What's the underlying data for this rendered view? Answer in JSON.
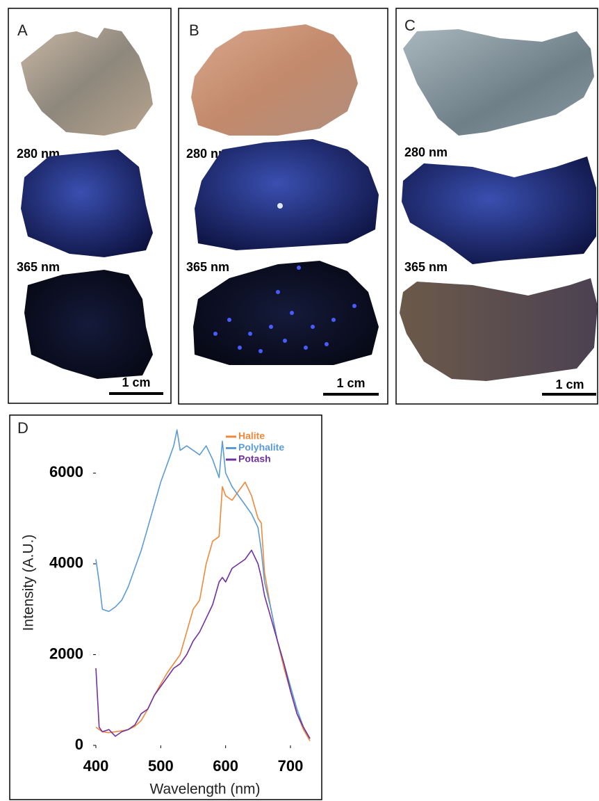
{
  "panels": [
    {
      "label": "A",
      "excitation_1": "280 nm",
      "excitation_2": "365 nm",
      "scale": "1 cm"
    },
    {
      "label": "B",
      "excitation_1": "280 nm",
      "excitation_2": "365 nm",
      "scale": "1 cm"
    },
    {
      "label": "C",
      "excitation_1": "280 nm",
      "excitation_2": "365 nm",
      "scale": "1 cm"
    }
  ],
  "chart_data": {
    "type": "line",
    "panel_label": "D",
    "x_label": "Wavelength (nm)",
    "y_label": "Intensity (A.U.)",
    "x": [
      400,
      405,
      410,
      420,
      430,
      440,
      450,
      460,
      470,
      480,
      490,
      500,
      510,
      520,
      525,
      530,
      540,
      550,
      560,
      570,
      580,
      590,
      595,
      600,
      610,
      620,
      630,
      640,
      650,
      655,
      660,
      670,
      680,
      690,
      700,
      710,
      720,
      730
    ],
    "series": [
      {
        "name": "Halite",
        "color": "#f0883a",
        "values": [
          400,
          350,
          300,
          280,
          300,
          320,
          350,
          420,
          550,
          800,
          1100,
          1350,
          1600,
          1800,
          1900,
          2000,
          2500,
          3000,
          3200,
          4000,
          4500,
          4600,
          5700,
          5500,
          5400,
          5600,
          5800,
          5500,
          5000,
          4900,
          3800,
          3000,
          2300,
          1700,
          1200,
          700,
          350,
          100
        ]
      },
      {
        "name": "Polyhalite",
        "color": "#5b9bd5",
        "values": [
          4100,
          3600,
          3000,
          2950,
          3050,
          3200,
          3500,
          3900,
          4300,
          4800,
          5300,
          5800,
          6200,
          6600,
          6950,
          6500,
          6600,
          6500,
          6400,
          6600,
          6300,
          5900,
          6700,
          6000,
          5700,
          5500,
          5300,
          5100,
          4800,
          4300,
          3600,
          3000,
          2300,
          1800,
          1300,
          800,
          400,
          150
        ]
      },
      {
        "name": "Potash",
        "color": "#7030a0",
        "values": [
          1700,
          400,
          300,
          350,
          200,
          300,
          350,
          450,
          700,
          800,
          1100,
          1300,
          1500,
          1700,
          1750,
          1800,
          2000,
          2300,
          2500,
          2800,
          3100,
          3600,
          3700,
          3600,
          3900,
          4000,
          4100,
          4300,
          4000,
          3700,
          3300,
          2800,
          2300,
          1800,
          1200,
          700,
          400,
          150
        ]
      }
    ],
    "xlim": [
      400,
      730
    ],
    "ylim": [
      0,
      7200
    ],
    "xticks": [
      400,
      500,
      600,
      700
    ],
    "yticks": [
      0,
      2000,
      4000,
      6000
    ],
    "grid": false,
    "legend": "upper-right"
  }
}
